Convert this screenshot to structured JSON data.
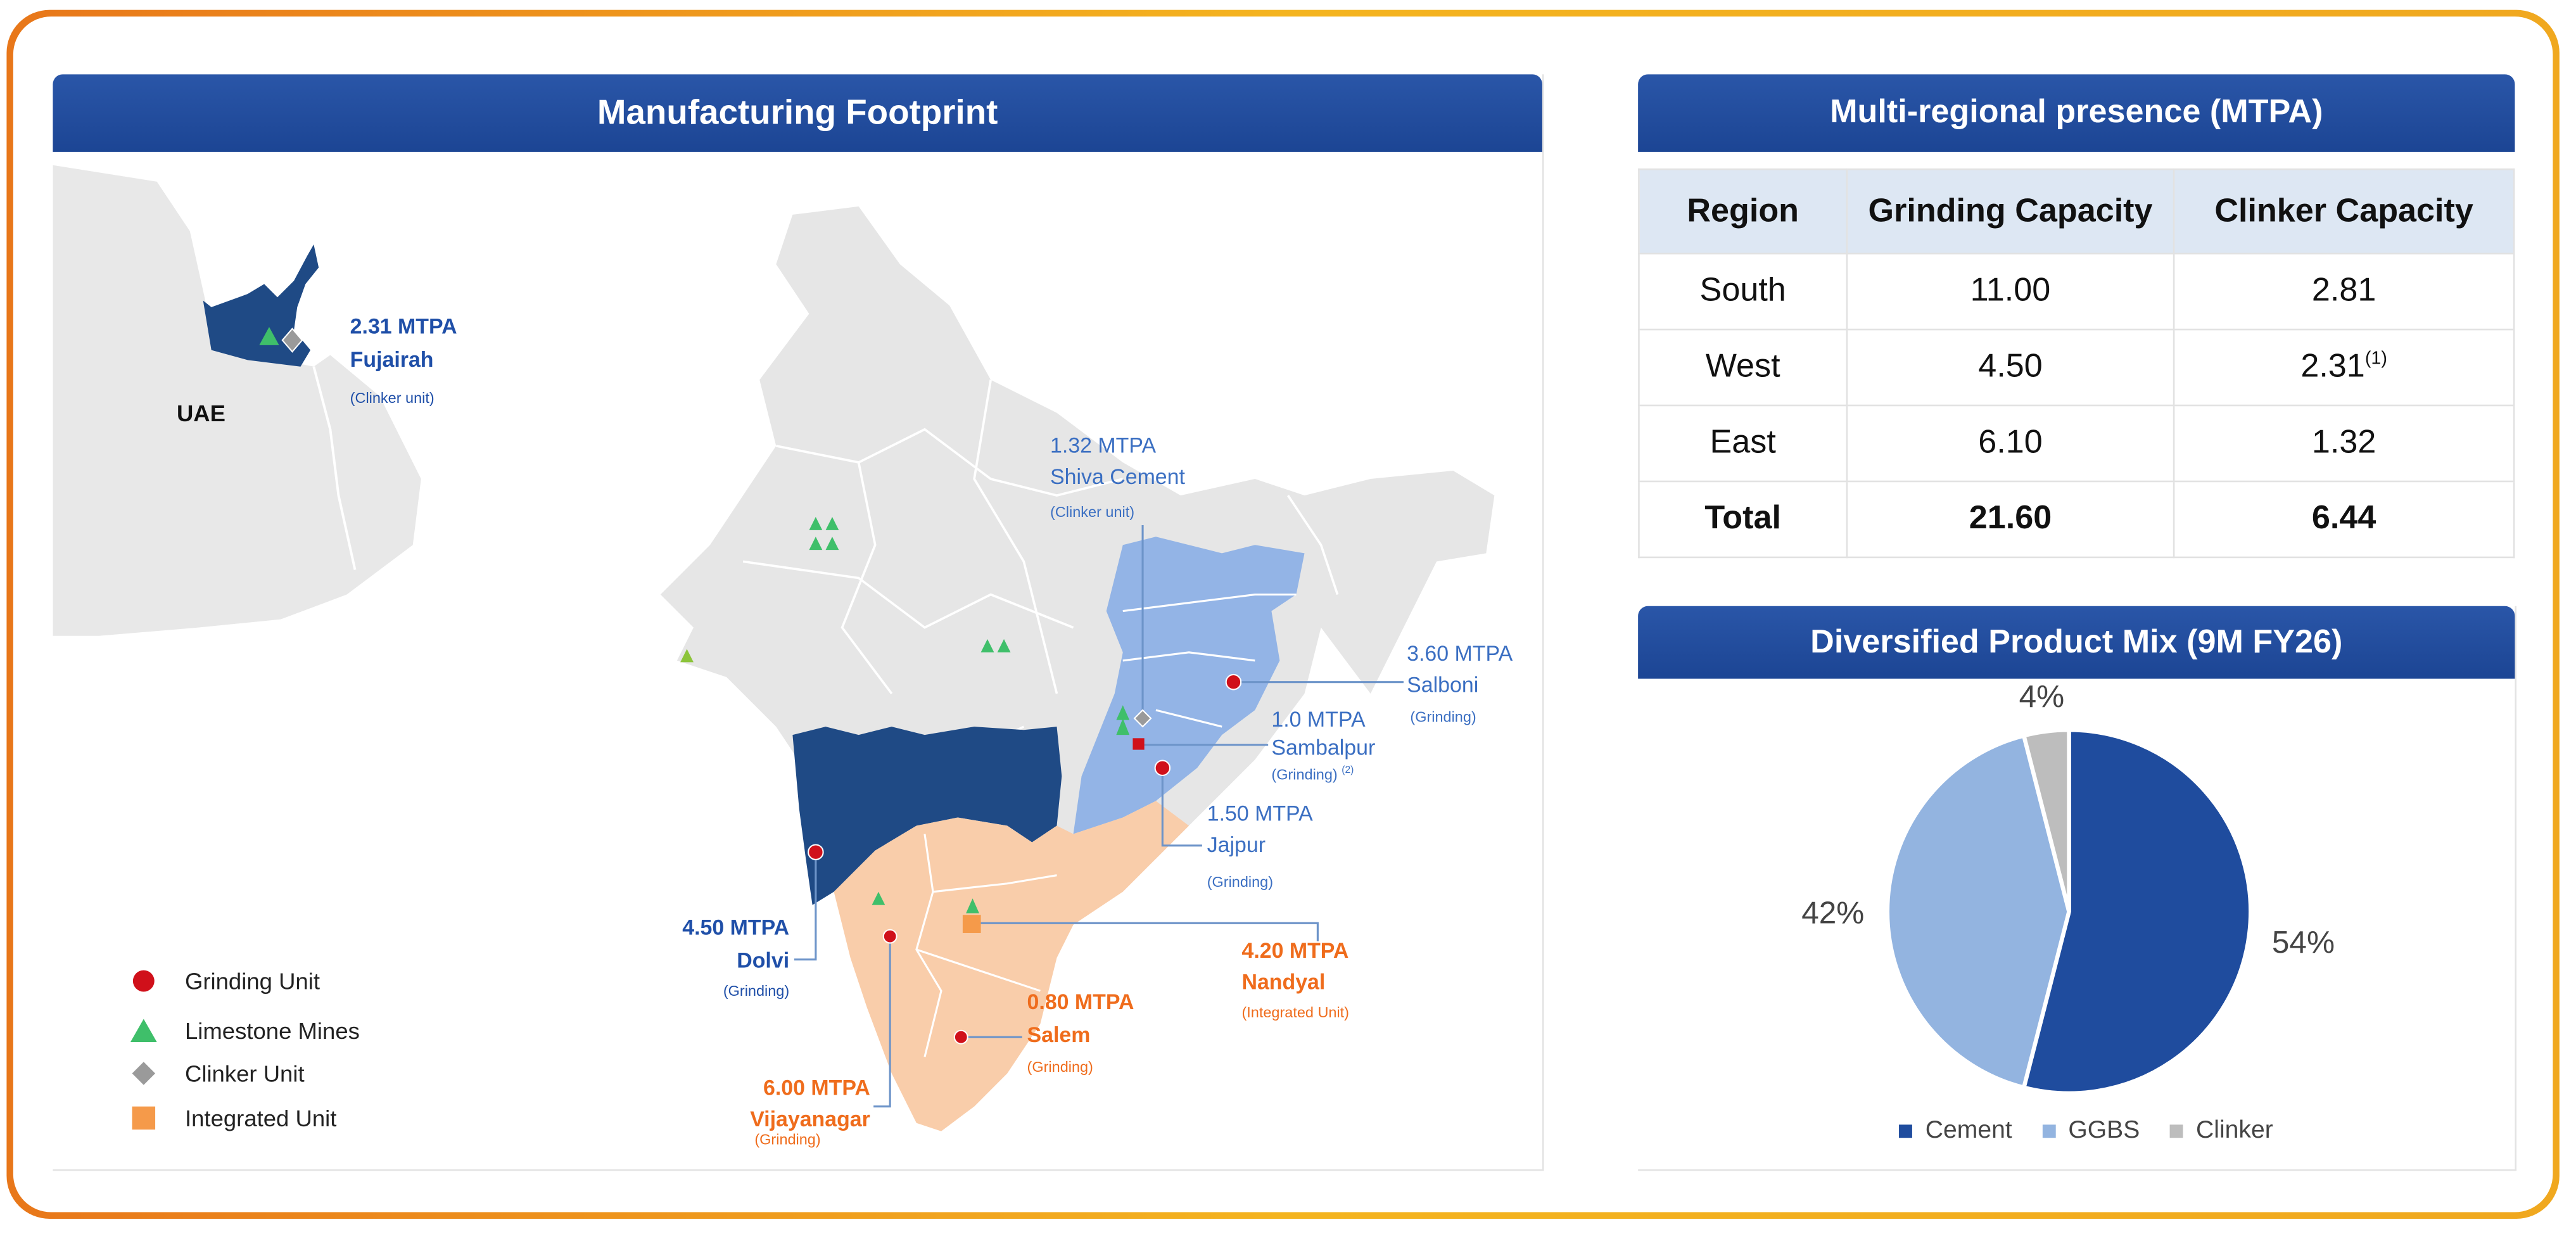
{
  "map_panel": {
    "title": "Manufacturing Footprint",
    "country_label": "UAE",
    "plants": [
      {
        "capacity": "2.31 MTPA",
        "name": "Fujairah",
        "type": "(Clinker unit)",
        "note": ""
      },
      {
        "capacity": "1.32 MTPA",
        "name": "Shiva Cement",
        "type": "(Clinker unit)",
        "note": ""
      },
      {
        "capacity": "3.60 MTPA",
        "name": "Salboni",
        "type": "(Grinding)",
        "note": ""
      },
      {
        "capacity": "1.0 MTPA",
        "name": "Sambalpur",
        "type": "(Grinding)",
        "note": "(2)"
      },
      {
        "capacity": "1.50 MTPA",
        "name": "Jajpur",
        "type": "(Grinding)",
        "note": ""
      },
      {
        "capacity": "4.50 MTPA",
        "name": "Dolvi",
        "type": "(Grinding)",
        "note": ""
      },
      {
        "capacity": "4.20 MTPA",
        "name": "Nandyal",
        "type": "(Integrated Unit)",
        "note": ""
      },
      {
        "capacity": "0.80 MTPA",
        "name": "Salem",
        "type": "(Grinding)",
        "note": ""
      },
      {
        "capacity": "6.00 MTPA",
        "name": "Vijayanagar",
        "type": "(Grinding)",
        "note": ""
      }
    ],
    "legend": [
      {
        "label": "Grinding Unit",
        "icon": "red-circle-icon",
        "color": "#d0101a"
      },
      {
        "label": "Limestone Mines",
        "icon": "green-triangle-icon",
        "color": "#3fbf6a"
      },
      {
        "label": "Clinker Unit",
        "icon": "gray-diamond-icon",
        "color": "#9a9a9a"
      },
      {
        "label": "Integrated Unit",
        "icon": "orange-square-icon",
        "color": "#f59a4a"
      }
    ],
    "region_colors": {
      "west": "#1f4a85",
      "east": "#8fb3e6",
      "south": "#f9cdaa",
      "other": "#e6e6e6"
    }
  },
  "table_panel": {
    "title": "Multi-regional presence (MTPA)",
    "columns": [
      "Region",
      "Grinding Capacity",
      "Clinker Capacity"
    ],
    "rows": [
      {
        "region": "South",
        "grinding": "11.00",
        "clinker": "2.81",
        "note": ""
      },
      {
        "region": "West",
        "grinding": "4.50",
        "clinker": "2.31",
        "note": "(1)"
      },
      {
        "region": "East",
        "grinding": "6.10",
        "clinker": "1.32",
        "note": ""
      }
    ],
    "total": {
      "region": "Total",
      "grinding": "21.60",
      "clinker": "6.44"
    }
  },
  "pie_panel": {
    "title": "Diversified Product Mix (9M FY26)"
  },
  "chart_data": {
    "type": "pie",
    "title": "Diversified Product Mix (9M FY26)",
    "categories": [
      "Cement",
      "GGBS",
      "Clinker"
    ],
    "values": [
      54,
      42,
      4
    ],
    "labels": [
      "54%",
      "42%",
      "4%"
    ],
    "colors": [
      "#1f4c9e",
      "#93b4e0",
      "#bdbdbd"
    ],
    "legend_position": "bottom"
  }
}
